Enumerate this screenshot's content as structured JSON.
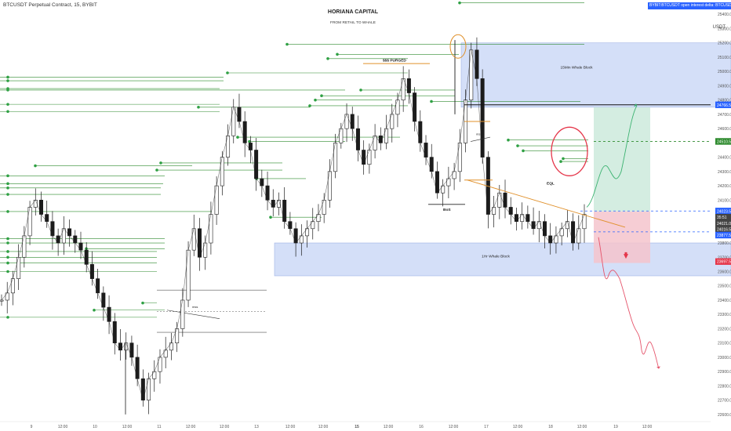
{
  "header": {
    "ticker": "BTCUSDT Perpetual Contract, 15, BYBIT",
    "title": "HORIANA CAPITAL",
    "subtitle": "FROM RETAIL TO WHALE",
    "banner": "BYBIT:BTCUSDT open interest delta: BTCUSDTPERP_OI",
    "unit": "USDT"
  },
  "colors": {
    "candle": "#1c1c1c",
    "liquidity_line": "#2e8b2e",
    "liquidity_dot": "#2ea043",
    "whale_block": "#c5d4f5",
    "target_zone": "#cdeadc",
    "stop_zone": "#f4c4cc",
    "orange": "#e0902a",
    "red": "#e5364a",
    "blue_dashed": "#2962ff",
    "green_dashed": "#2e8b2e"
  },
  "chart_data": {
    "type": "line",
    "x_axis": {
      "tick_labels": [
        "9",
        "12:00",
        "10",
        "12:00",
        "11",
        "12:00",
        "12:00",
        "13",
        "12:00",
        "12:00",
        "15",
        "12:00",
        "16",
        "12:00",
        "17",
        "12:00",
        "18",
        "12:00",
        "19",
        "12:00"
      ]
    },
    "y_axis": {
      "range": [
        22550,
        25500
      ],
      "tick_labels": [
        "25400.0",
        "25300.0",
        "25200.0",
        "25100.0",
        "25000.0",
        "24900.0",
        "24800.0",
        "24700.0",
        "24600.0",
        "24500.0",
        "24400.0",
        "24300.0",
        "24200.0",
        "24100.0",
        "24000.0",
        "23900.0",
        "23800.0",
        "23700.0",
        "23600.0",
        "23500.0",
        "23400.0",
        "23300.0",
        "23200.0",
        "23100.0",
        "23000.0",
        "22900.0",
        "22800.0",
        "22700.0",
        "22600.0"
      ]
    },
    "series": [
      {
        "values": [
          23400,
          23450,
          23550,
          23700,
          23850,
          24050,
          24100,
          24000,
          23950,
          23850,
          23800,
          23900,
          23850,
          23800,
          23750,
          23650,
          23550,
          23450,
          23350,
          23250,
          23100,
          23050,
          23100,
          23000,
          22850,
          22700,
          22850,
          22900,
          23000,
          23050,
          23100,
          23200,
          23400,
          23750,
          23900,
          23700,
          23800,
          24000,
          24200,
          24400,
          24550,
          24750,
          24650,
          24500,
          24450,
          24250,
          24200,
          24100,
          24050,
          24100,
          23950,
          23900,
          23800,
          23850,
          23900,
          23950,
          24000,
          24100,
          24300,
          24500,
          24600,
          24700,
          24600,
          24450,
          24350,
          24450,
          24550,
          24500,
          24600,
          24700,
          24800,
          24950,
          24850,
          24650,
          24500,
          24400,
          24300,
          24150,
          24200,
          24250,
          24300,
          24500,
          24800,
          25150,
          24950,
          24400,
          24000,
          24050,
          24150,
          24050,
          24000,
          23950,
          24000,
          23950,
          23900,
          23950,
          23850,
          23800,
          23850,
          23900,
          23950,
          23800,
          23900,
          24000
        ]
      }
    ],
    "annotations": {
      "high_whale_block": {
        "label": "15Min Whale Block",
        "y_top": 25200,
        "y_bottom": 24750
      },
      "low_whale_block": {
        "label": "1Hr Whale Block",
        "y_top": 23800,
        "y_bottom": 23570
      },
      "labels": [
        "$$$ PURGED",
        "BoS",
        "EQL",
        "mss",
        "mss"
      ],
      "target_zone": {
        "y_top": 24750,
        "y_bottom": 24020
      },
      "stop_zone": {
        "y_top": 24020,
        "y_bottom": 23660
      },
      "price_labels": [
        {
          "value": "24766.5",
          "y": 24766.5,
          "color": "#2962ff"
        },
        {
          "value": "24510.5",
          "y": 24510.5,
          "color": "#2e8b2e"
        },
        {
          "value": "24023.5",
          "y": 24023.5,
          "color": "#2962ff"
        },
        {
          "value": "35:51",
          "y": 23980,
          "color": "#444444"
        },
        {
          "value": "24021.0",
          "y": 23937,
          "color": "#444444"
        },
        {
          "value": "24016.5",
          "y": 23897,
          "color": "#444444"
        },
        {
          "value": "23877.5",
          "y": 23855,
          "color": "#2962ff"
        },
        {
          "value": "23697.5",
          "y": 23670,
          "color": "#e5364a"
        }
      ]
    }
  }
}
